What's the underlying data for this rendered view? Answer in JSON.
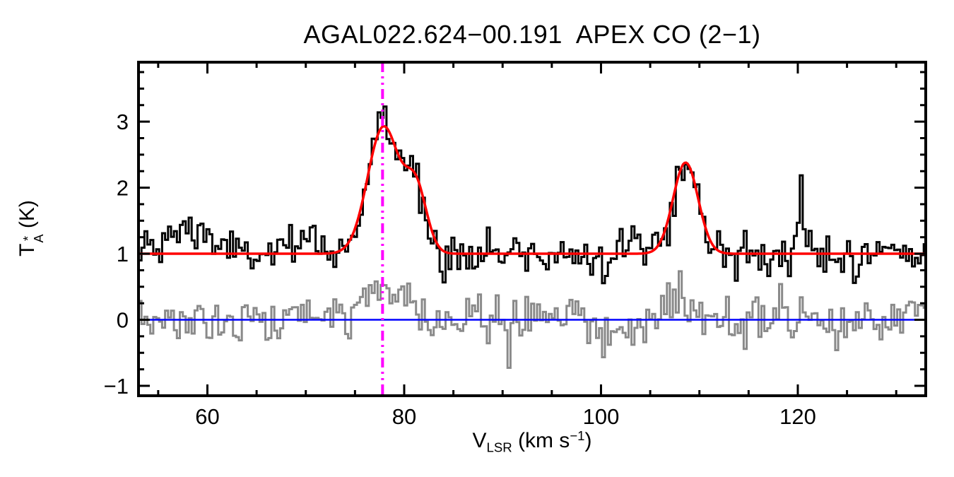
{
  "figure": {
    "background": "#ffffff"
  },
  "chart_data": {
    "type": "line",
    "title": "AGAL022.624−00.191  APEX CO (2−1)",
    "xlabel": {
      "prefix": "V",
      "sub": "LSR",
      "mid": " (km s",
      "sup": "−1",
      "suffix": ")"
    },
    "ylabel": {
      "prefix": "T",
      "sup": "*",
      "sub": "A",
      "suffix": " (K)"
    },
    "xlim": [
      53,
      133
    ],
    "ylim": [
      -1.15,
      3.9
    ],
    "xticks": [
      60,
      80,
      100,
      120
    ],
    "yticks": [
      -1,
      0,
      1,
      2,
      3
    ],
    "x_minor_step": 5,
    "y_minor_step": 0.25,
    "channel_width_kms": 0.3,
    "axis_color": "#000000",
    "series": [
      {
        "name": "observed-spectrum",
        "style": "histogram",
        "color": "#000000",
        "baseline": 1.0,
        "noise_rms": 0.17,
        "line_width": 3,
        "components": [
          {
            "center": 77.9,
            "amplitude": 1.92,
            "fwhm": 3.8
          },
          {
            "center": 81.2,
            "amplitude": 0.95,
            "fwhm": 2.6
          },
          {
            "center": 108.6,
            "amplitude": 1.38,
            "fwhm": 3.0
          },
          {
            "center": 58.3,
            "amplitude": 0.4,
            "fwhm": 4.5
          },
          {
            "center": 70.8,
            "amplitude": 0.2,
            "fwhm": 2.5
          },
          {
            "center": 102.8,
            "amplitude": 0.22,
            "fwhm": 2.2
          },
          {
            "center": 120.4,
            "amplitude": 1.05,
            "fwhm": 0.45
          }
        ]
      },
      {
        "name": "residual-spectrum",
        "style": "histogram",
        "color": "#8a8a8a",
        "baseline": 0.0,
        "noise_rms": 0.18,
        "line_width": 3,
        "components": [
          {
            "center": 77.9,
            "amplitude": 0.5,
            "fwhm": 5.5
          },
          {
            "center": 107.8,
            "amplitude": 0.28,
            "fwhm": 4.0
          }
        ]
      },
      {
        "name": "gaussian-fit",
        "style": "smooth",
        "color": "#ff0000",
        "baseline": 1.0,
        "noise_rms": 0,
        "line_width": 3.5,
        "components": [
          {
            "center": 77.9,
            "amplitude": 1.92,
            "fwhm": 3.8
          },
          {
            "center": 81.2,
            "amplitude": 0.95,
            "fwhm": 2.6
          },
          {
            "center": 108.6,
            "amplitude": 1.38,
            "fwhm": 3.0
          }
        ]
      }
    ],
    "hline": {
      "name": "zero-baseline",
      "y": 0.0,
      "color": "#0000ff",
      "line_width": 2.5
    },
    "vline": {
      "name": "systemic-velocity-marker",
      "x": 77.8,
      "color": "#ff00ff",
      "linestyle": "dash-dot-dot",
      "line_width": 4
    }
  }
}
